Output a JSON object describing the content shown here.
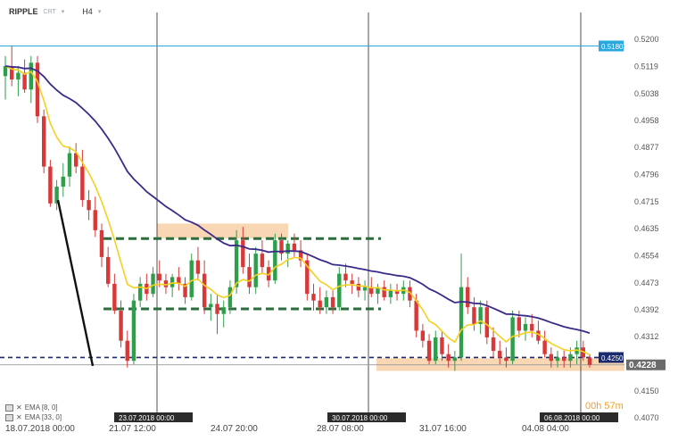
{
  "header": {
    "symbol": "RIPPLE",
    "symbol_sub": "CRT",
    "caret": "▾",
    "timeframe": "H4",
    "tf_caret": "▾"
  },
  "indicators": [
    {
      "label": "EMA [8, 0]",
      "color": "#f5d020"
    },
    {
      "label": "EMA [33, 0]",
      "color": "#3b2a8a"
    }
  ],
  "timer": "00h 57m",
  "chart_data": {
    "type": "candlestick",
    "y_axis": {
      "ylim": [
        0.407,
        0.523
      ],
      "ticks": [
        "0.5200",
        "0.5119",
        "0.5038",
        "0.4958",
        "0.4877",
        "0.4796",
        "0.4715",
        "0.4635",
        "0.4554",
        "0.4473",
        "0.4392",
        "0.4312",
        "0.4231",
        "0.4150",
        "0.4070"
      ]
    },
    "x_axis": {
      "tick_labels": [
        "18.07.2018 00:00",
        "21.07 12:00",
        "24.07 20:00",
        "28.07 08:00",
        "31.07 16:00",
        "04.08 04:00"
      ]
    },
    "vertical_date_labels": [
      "23.07.2018 00:00",
      "30.07.2018 00:00",
      "06.08.2018 00:00"
    ],
    "price_labels": [
      {
        "value": 0.518,
        "text": "0.5180",
        "color": "#29a8e0"
      },
      {
        "value": 0.425,
        "text": "0.4250",
        "color": "#1a2a6c"
      },
      {
        "value": 0.4228,
        "text": "0.4228",
        "color": "#6b6b6b"
      }
    ],
    "horizontal_lines": [
      {
        "value": 0.518,
        "style": "solid",
        "color": "#29a8e0"
      },
      {
        "value": 0.425,
        "style": "dashed",
        "color": "#1a2a6c"
      },
      {
        "value": 0.4228,
        "style": "solid",
        "color": "#999999"
      }
    ],
    "channel_lines": [
      {
        "x_start": "21.07",
        "x_end": "30.07",
        "value": 0.4605,
        "color": "#2e6b3f",
        "style": "dashed"
      },
      {
        "x_start": "21.07",
        "x_end": "30.07",
        "value": 0.4395,
        "color": "#2e6b3f",
        "style": "dashed"
      }
    ],
    "zones": [
      {
        "x_range": [
          "23.07",
          "27.07"
        ],
        "y_range": [
          0.4605,
          0.465
        ],
        "color": "#f7c89b"
      },
      {
        "x_range": [
          "30.07",
          "06.08"
        ],
        "y_range": [
          0.421,
          0.4248
        ],
        "color": "#f7c89b"
      }
    ],
    "trendline": {
      "from": {
        "x": "19.07",
        "y": 0.472
      },
      "to": {
        "x": "21.07",
        "y": 0.4225
      },
      "color": "#111111"
    },
    "candles": [
      {
        "o": 0.509,
        "h": 0.515,
        "l": 0.502,
        "c": 0.512
      },
      {
        "o": 0.512,
        "h": 0.518,
        "l": 0.506,
        "c": 0.508
      },
      {
        "o": 0.508,
        "h": 0.512,
        "l": 0.503,
        "c": 0.51
      },
      {
        "o": 0.51,
        "h": 0.514,
        "l": 0.504,
        "c": 0.505
      },
      {
        "o": 0.505,
        "h": 0.515,
        "l": 0.501,
        "c": 0.513
      },
      {
        "o": 0.513,
        "h": 0.515,
        "l": 0.495,
        "c": 0.497
      },
      {
        "o": 0.497,
        "h": 0.499,
        "l": 0.48,
        "c": 0.482
      },
      {
        "o": 0.482,
        "h": 0.484,
        "l": 0.47,
        "c": 0.471
      },
      {
        "o": 0.471,
        "h": 0.478,
        "l": 0.469,
        "c": 0.476
      },
      {
        "o": 0.476,
        "h": 0.483,
        "l": 0.473,
        "c": 0.479
      },
      {
        "o": 0.479,
        "h": 0.488,
        "l": 0.476,
        "c": 0.486
      },
      {
        "o": 0.486,
        "h": 0.489,
        "l": 0.48,
        "c": 0.482
      },
      {
        "o": 0.482,
        "h": 0.487,
        "l": 0.47,
        "c": 0.472
      },
      {
        "o": 0.472,
        "h": 0.475,
        "l": 0.466,
        "c": 0.469
      },
      {
        "o": 0.469,
        "h": 0.473,
        "l": 0.461,
        "c": 0.463
      },
      {
        "o": 0.463,
        "h": 0.465,
        "l": 0.452,
        "c": 0.455
      },
      {
        "o": 0.455,
        "h": 0.458,
        "l": 0.446,
        "c": 0.447
      },
      {
        "o": 0.447,
        "h": 0.45,
        "l": 0.438,
        "c": 0.439
      },
      {
        "o": 0.439,
        "h": 0.442,
        "l": 0.428,
        "c": 0.43
      },
      {
        "o": 0.43,
        "h": 0.433,
        "l": 0.422,
        "c": 0.424
      },
      {
        "o": 0.424,
        "h": 0.444,
        "l": 0.423,
        "c": 0.442
      },
      {
        "o": 0.442,
        "h": 0.449,
        "l": 0.44,
        "c": 0.447
      },
      {
        "o": 0.447,
        "h": 0.45,
        "l": 0.442,
        "c": 0.444
      },
      {
        "o": 0.444,
        "h": 0.452,
        "l": 0.443,
        "c": 0.45
      },
      {
        "o": 0.45,
        "h": 0.454,
        "l": 0.446,
        "c": 0.448
      },
      {
        "o": 0.448,
        "h": 0.45,
        "l": 0.444,
        "c": 0.446
      },
      {
        "o": 0.446,
        "h": 0.45,
        "l": 0.443,
        "c": 0.449
      },
      {
        "o": 0.449,
        "h": 0.452,
        "l": 0.445,
        "c": 0.447
      },
      {
        "o": 0.447,
        "h": 0.449,
        "l": 0.441,
        "c": 0.443
      },
      {
        "o": 0.443,
        "h": 0.456,
        "l": 0.442,
        "c": 0.454
      },
      {
        "o": 0.454,
        "h": 0.458,
        "l": 0.448,
        "c": 0.45
      },
      {
        "o": 0.45,
        "h": 0.454,
        "l": 0.438,
        "c": 0.44
      },
      {
        "o": 0.44,
        "h": 0.444,
        "l": 0.436,
        "c": 0.441
      },
      {
        "o": 0.441,
        "h": 0.444,
        "l": 0.432,
        "c": 0.438
      },
      {
        "o": 0.438,
        "h": 0.442,
        "l": 0.434,
        "c": 0.44
      },
      {
        "o": 0.44,
        "h": 0.448,
        "l": 0.438,
        "c": 0.446
      },
      {
        "o": 0.446,
        "h": 0.463,
        "l": 0.444,
        "c": 0.46
      },
      {
        "o": 0.46,
        "h": 0.464,
        "l": 0.45,
        "c": 0.452
      },
      {
        "o": 0.452,
        "h": 0.456,
        "l": 0.444,
        "c": 0.446
      },
      {
        "o": 0.446,
        "h": 0.458,
        "l": 0.444,
        "c": 0.456
      },
      {
        "o": 0.456,
        "h": 0.46,
        "l": 0.45,
        "c": 0.452
      },
      {
        "o": 0.452,
        "h": 0.454,
        "l": 0.446,
        "c": 0.448
      },
      {
        "o": 0.448,
        "h": 0.462,
        "l": 0.447,
        "c": 0.46
      },
      {
        "o": 0.46,
        "h": 0.462,
        "l": 0.454,
        "c": 0.456
      },
      {
        "o": 0.456,
        "h": 0.46,
        "l": 0.452,
        "c": 0.459
      },
      {
        "o": 0.459,
        "h": 0.462,
        "l": 0.455,
        "c": 0.457
      },
      {
        "o": 0.457,
        "h": 0.46,
        "l": 0.452,
        "c": 0.454
      },
      {
        "o": 0.454,
        "h": 0.456,
        "l": 0.442,
        "c": 0.444
      },
      {
        "o": 0.444,
        "h": 0.447,
        "l": 0.439,
        "c": 0.442
      },
      {
        "o": 0.442,
        "h": 0.446,
        "l": 0.438,
        "c": 0.44
      },
      {
        "o": 0.44,
        "h": 0.445,
        "l": 0.438,
        "c": 0.443
      },
      {
        "o": 0.443,
        "h": 0.445,
        "l": 0.438,
        "c": 0.44
      },
      {
        "o": 0.44,
        "h": 0.452,
        "l": 0.439,
        "c": 0.45
      },
      {
        "o": 0.45,
        "h": 0.453,
        "l": 0.446,
        "c": 0.448
      },
      {
        "o": 0.448,
        "h": 0.45,
        "l": 0.444,
        "c": 0.447
      },
      {
        "o": 0.447,
        "h": 0.449,
        "l": 0.443,
        "c": 0.445
      },
      {
        "o": 0.445,
        "h": 0.448,
        "l": 0.442,
        "c": 0.446
      },
      {
        "o": 0.446,
        "h": 0.449,
        "l": 0.443,
        "c": 0.444
      },
      {
        "o": 0.444,
        "h": 0.447,
        "l": 0.441,
        "c": 0.446
      },
      {
        "o": 0.446,
        "h": 0.448,
        "l": 0.442,
        "c": 0.443
      },
      {
        "o": 0.443,
        "h": 0.447,
        "l": 0.441,
        "c": 0.445
      },
      {
        "o": 0.445,
        "h": 0.447,
        "l": 0.442,
        "c": 0.444
      },
      {
        "o": 0.444,
        "h": 0.448,
        "l": 0.442,
        "c": 0.446
      },
      {
        "o": 0.446,
        "h": 0.448,
        "l": 0.44,
        "c": 0.442
      },
      {
        "o": 0.442,
        "h": 0.444,
        "l": 0.431,
        "c": 0.433
      },
      {
        "o": 0.433,
        "h": 0.435,
        "l": 0.428,
        "c": 0.43
      },
      {
        "o": 0.43,
        "h": 0.432,
        "l": 0.423,
        "c": 0.424
      },
      {
        "o": 0.424,
        "h": 0.433,
        "l": 0.423,
        "c": 0.431
      },
      {
        "o": 0.431,
        "h": 0.433,
        "l": 0.424,
        "c": 0.426
      },
      {
        "o": 0.426,
        "h": 0.429,
        "l": 0.422,
        "c": 0.424
      },
      {
        "o": 0.424,
        "h": 0.427,
        "l": 0.421,
        "c": 0.425
      },
      {
        "o": 0.425,
        "h": 0.456,
        "l": 0.424,
        "c": 0.446
      },
      {
        "o": 0.446,
        "h": 0.449,
        "l": 0.438,
        "c": 0.44
      },
      {
        "o": 0.44,
        "h": 0.443,
        "l": 0.433,
        "c": 0.435
      },
      {
        "o": 0.435,
        "h": 0.442,
        "l": 0.432,
        "c": 0.44
      },
      {
        "o": 0.44,
        "h": 0.442,
        "l": 0.429,
        "c": 0.431
      },
      {
        "o": 0.431,
        "h": 0.434,
        "l": 0.425,
        "c": 0.427
      },
      {
        "o": 0.427,
        "h": 0.43,
        "l": 0.423,
        "c": 0.425
      },
      {
        "o": 0.425,
        "h": 0.428,
        "l": 0.422,
        "c": 0.424
      },
      {
        "o": 0.424,
        "h": 0.439,
        "l": 0.423,
        "c": 0.437
      },
      {
        "o": 0.437,
        "h": 0.439,
        "l": 0.431,
        "c": 0.433
      },
      {
        "o": 0.433,
        "h": 0.437,
        "l": 0.43,
        "c": 0.435
      },
      {
        "o": 0.435,
        "h": 0.438,
        "l": 0.431,
        "c": 0.433
      },
      {
        "o": 0.433,
        "h": 0.436,
        "l": 0.429,
        "c": 0.43
      },
      {
        "o": 0.43,
        "h": 0.433,
        "l": 0.425,
        "c": 0.426
      },
      {
        "o": 0.426,
        "h": 0.428,
        "l": 0.422,
        "c": 0.424
      },
      {
        "o": 0.424,
        "h": 0.427,
        "l": 0.422,
        "c": 0.425
      },
      {
        "o": 0.425,
        "h": 0.427,
        "l": 0.422,
        "c": 0.424
      },
      {
        "o": 0.424,
        "h": 0.428,
        "l": 0.422,
        "c": 0.426
      },
      {
        "o": 0.426,
        "h": 0.43,
        "l": 0.423,
        "c": 0.428
      },
      {
        "o": 0.428,
        "h": 0.43,
        "l": 0.424,
        "c": 0.425
      },
      {
        "o": 0.425,
        "h": 0.426,
        "l": 0.422,
        "c": 0.4228
      }
    ]
  }
}
